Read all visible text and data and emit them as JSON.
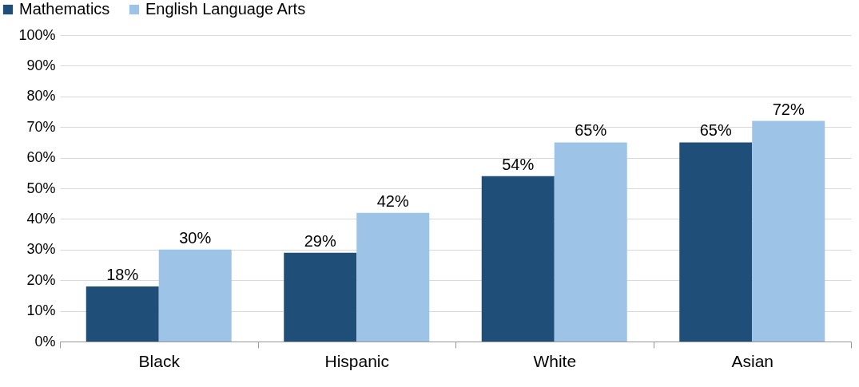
{
  "chart_data": {
    "type": "bar",
    "categories": [
      "Black",
      "Hispanic",
      "White",
      "Asian"
    ],
    "series": [
      {
        "name": "Mathematics",
        "color": "#1f4e79",
        "values": [
          18,
          29,
          54,
          65
        ],
        "value_labels": [
          "18%",
          "29%",
          "54%",
          "65%"
        ]
      },
      {
        "name": "English Language Arts",
        "color": "#9dc3e6",
        "values": [
          30,
          42,
          65,
          72
        ],
        "value_labels": [
          "30%",
          "42%",
          "65%",
          "72%"
        ]
      }
    ],
    "ylim": [
      0,
      100
    ],
    "yticks": [
      {
        "value": 0,
        "label": "0%"
      },
      {
        "value": 10,
        "label": "10%"
      },
      {
        "value": 20,
        "label": "20%"
      },
      {
        "value": 30,
        "label": "30%"
      },
      {
        "value": 40,
        "label": "40%"
      },
      {
        "value": 50,
        "label": "50%"
      },
      {
        "value": 60,
        "label": "60%"
      },
      {
        "value": 70,
        "label": "70%"
      },
      {
        "value": 80,
        "label": "80%"
      },
      {
        "value": 90,
        "label": "90%"
      },
      {
        "value": 100,
        "label": "100%"
      }
    ],
    "grid": "y",
    "legend": "top left"
  }
}
